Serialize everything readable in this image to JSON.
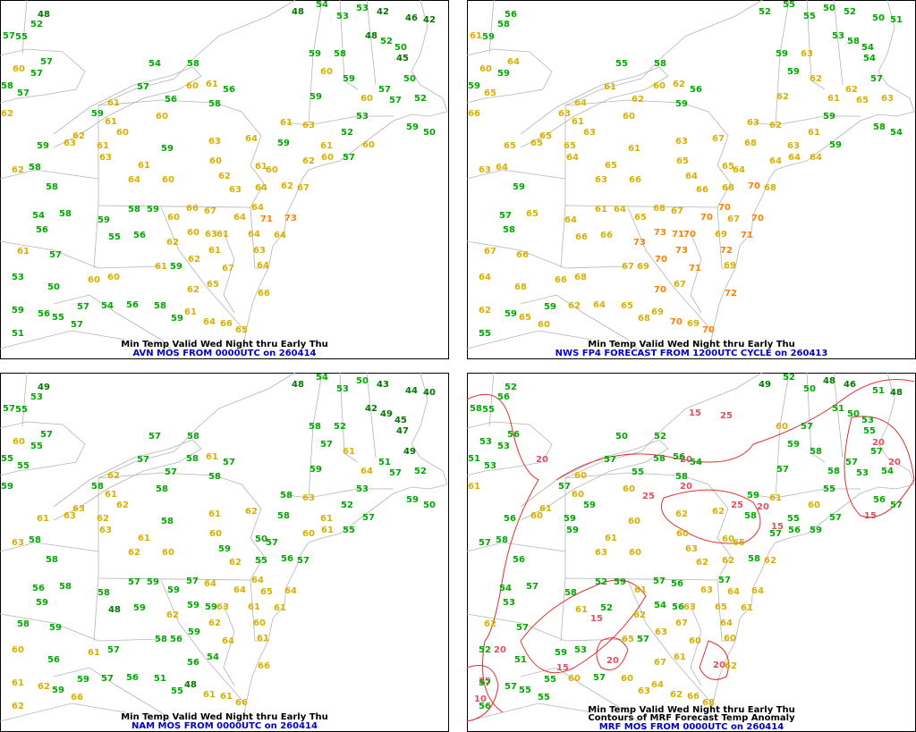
{
  "panels": [
    {
      "title": "Min Temp Valid Wed Night thru Early Thu",
      "subtitle": "AVN MOS FROM 0000UTC on 260414",
      "stations": [
        48,
        52,
        57,
        55,
        57,
        60,
        57,
        58,
        57,
        62,
        59,
        61,
        54,
        58,
        57,
        56,
        60,
        61,
        56,
        58,
        60,
        61,
        60,
        62,
        59,
        63,
        61,
        59,
        63,
        64,
        63,
        61,
        60,
        64,
        62,
        60,
        63,
        58,
        62,
        58,
        54,
        58,
        56,
        59,
        58,
        59,
        55,
        56,
        60,
        66,
        67,
        60,
        63,
        61,
        64,
        62,
        61,
        57,
        53,
        50,
        60,
        60,
        61,
        59,
        62,
        61,
        67,
        63,
        64,
        64,
        71,
        73,
        64,
        59,
        56,
        55,
        57,
        54,
        56,
        58,
        59,
        61,
        62,
        65,
        64,
        66,
        65,
        51,
        57,
        64,
        66,
        60,
        61,
        62,
        67,
        64,
        48,
        54,
        53,
        53,
        42,
        46,
        42,
        48,
        52,
        50,
        45,
        58,
        60,
        59,
        60,
        57,
        50,
        57,
        52,
        59,
        50,
        53,
        52,
        61,
        62,
        59,
        63,
        61,
        59,
        59,
        60,
        57,
        60
      ]
    },
    {
      "title": "Min Temp Valid Wed Night thru Early Thu",
      "subtitle": "NWS FP4 FORECAST FROM 1200UTC CYCLE on 260413",
      "stations": [
        56,
        58,
        61,
        59,
        64,
        60,
        59,
        59,
        65,
        66,
        63,
        64,
        55,
        58,
        61,
        62,
        60,
        62,
        56,
        59,
        60,
        61,
        63,
        65,
        65,
        65,
        65,
        61,
        63,
        67,
        64,
        65,
        66,
        63,
        64,
        65,
        66,
        64,
        63,
        59,
        57,
        65,
        58,
        64,
        61,
        64,
        66,
        66,
        65,
        68,
        67,
        73,
        71,
        70,
        70,
        73,
        67,
        66,
        64,
        68,
        66,
        68,
        67,
        69,
        70,
        73,
        71,
        72,
        69,
        71,
        67,
        70,
        70,
        62,
        59,
        65,
        59,
        62,
        64,
        65,
        68,
        69,
        70,
        67,
        70,
        69,
        70,
        55,
        60,
        69,
        72,
        64,
        65,
        70,
        68,
        68,
        52,
        55,
        55,
        50,
        52,
        50,
        51,
        53,
        58,
        54,
        54,
        63,
        59,
        62,
        61,
        62,
        57,
        65,
        63,
        58,
        54,
        59,
        61,
        63,
        64,
        68,
        62,
        63,
        59,
        62,
        59,
        64,
        64
      ]
    },
    {
      "title": "Min Temp Valid Wed Night thru Early Thu",
      "subtitle": "NAM MOS FROM 0000UTC on 260414",
      "stations": [
        49,
        53,
        57,
        55,
        57,
        60,
        55,
        55,
        55,
        59,
        58,
        62,
        57,
        58,
        57,
        57,
        58,
        61,
        57,
        58,
        58,
        61,
        62,
        63,
        61,
        63,
        62,
        58,
        61,
        62,
        63,
        61,
        60,
        62,
        59,
        60,
        62,
        58,
        63,
        58,
        56,
        58,
        59,
        58,
        57,
        59,
        48,
        59,
        59,
        57,
        64,
        59,
        59,
        63,
        64,
        62,
        58,
        59,
        60,
        56,
        61,
        57,
        58,
        56,
        59,
        62,
        64,
        60,
        61,
        61,
        65,
        64,
        64,
        61,
        62,
        59,
        59,
        57,
        56,
        51,
        55,
        48,
        56,
        54,
        61,
        61,
        66,
        62,
        66,
        61,
        66,
        57,
        50,
        56,
        57,
        55,
        48,
        54,
        53,
        50,
        43,
        44,
        40,
        42,
        49,
        45,
        47,
        52,
        57,
        61,
        64,
        51,
        49,
        57,
        52,
        59,
        50,
        53,
        52,
        61,
        60,
        58,
        63,
        58,
        58,
        59,
        57,
        55,
        61
      ]
    },
    {
      "title": "Min Temp Valid Wed Night thru Early Thu",
      "contour_title": "Contours of MRF Forecast Temp Anomaly",
      "subtitle": "MRF MOS FROM 0000UTC on 260414",
      "stations": [
        52,
        56,
        58,
        55,
        56,
        53,
        53,
        51,
        53,
        61,
        57,
        60,
        50,
        52,
        57,
        55,
        58,
        56,
        54,
        58,
        60,
        60,
        59,
        61,
        56,
        60,
        59,
        60,
        62,
        62,
        59,
        61,
        60,
        63,
        63,
        60,
        62,
        58,
        57,
        56,
        54,
        57,
        53,
        58,
        52,
        59,
        61,
        52,
        61,
        57,
        56,
        54,
        56,
        63,
        63,
        62,
        62,
        57,
        52,
        51,
        59,
        53,
        65,
        57,
        63,
        67,
        60,
        64,
        65,
        61,
        64,
        64,
        57,
        57,
        57,
        55,
        55,
        60,
        57,
        60,
        63,
        64,
        67,
        61,
        62,
        66,
        68,
        56,
        55,
        60,
        62,
        65,
        60,
        58,
        62,
        62,
        49,
        52,
        50,
        48,
        46,
        51,
        48,
        51,
        50,
        53,
        55,
        57,
        59,
        58,
        58,
        57,
        57,
        53,
        54,
        56,
        57,
        55,
        60,
        55,
        57,
        58,
        61,
        59,
        60,
        57,
        57,
        59,
        56
      ],
      "contour_labels": [
        20,
        25,
        20,
        20,
        15,
        25,
        20,
        15,
        20,
        15,
        25,
        20,
        15,
        20,
        15,
        20,
        15,
        10,
        20
      ]
    }
  ]
}
